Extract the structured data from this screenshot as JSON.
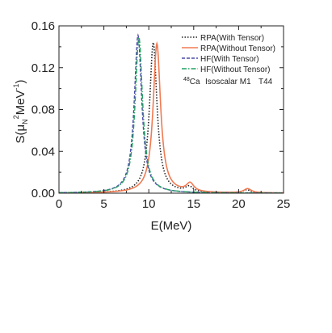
{
  "chart_data": {
    "type": "line",
    "title": "",
    "xlabel": "E(MeV)",
    "ylabel_main": "S(μ",
    "ylabel_sub": "N",
    "ylabel_sup": "2",
    "ylabel_unit": "MeV",
    "ylabel_unit_sup": "-1",
    "ylabel_close": ")",
    "xlim": [
      0,
      25
    ],
    "ylim": [
      0,
      0.16
    ],
    "xticks": [
      "0",
      "5",
      "10",
      "15",
      "20",
      "25"
    ],
    "yticks": [
      "0.00",
      "0.04",
      "0.08",
      "0.12",
      "0.16"
    ],
    "grid": false,
    "legend_position": "top-right",
    "annotation": {
      "mass": "48",
      "element": "Ca",
      "label": "Isoscalar M1",
      "force": "T44"
    },
    "series": [
      {
        "name": "RPA(With Tensor)",
        "color": "#222222",
        "style": "dotted",
        "peaks": [
          {
            "E": 10.5,
            "height": 0.144,
            "width": 0.5
          },
          {
            "E": 14.5,
            "height": 0.005,
            "width": 0.5
          },
          {
            "E": 20.9,
            "height": 0.003,
            "width": 0.5
          }
        ]
      },
      {
        "name": "RPA(Without Tensor)",
        "color": "#f07a52",
        "style": "solid",
        "peaks": [
          {
            "E": 10.9,
            "height": 0.143,
            "width": 0.5
          },
          {
            "E": 14.6,
            "height": 0.008,
            "width": 0.5
          },
          {
            "E": 21.0,
            "height": 0.004,
            "width": 0.5
          }
        ]
      },
      {
        "name": "HF(With Tensor)",
        "color": "#4a4aa8",
        "style": "dashed",
        "peaks": [
          {
            "E": 8.8,
            "height": 0.151,
            "width": 0.5
          }
        ]
      },
      {
        "name": "HF(Without Tensor)",
        "color": "#22a060",
        "style": "dashdot",
        "peaks": [
          {
            "E": 8.9,
            "height": 0.149,
            "width": 0.5
          }
        ]
      }
    ]
  }
}
